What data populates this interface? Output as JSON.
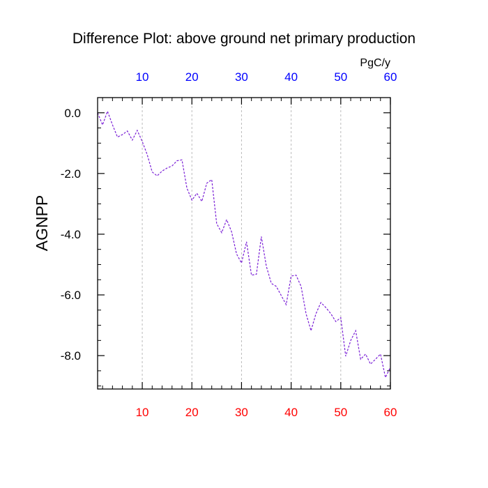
{
  "chart_data": {
    "type": "line",
    "title": "Difference Plot: above ground net primary production",
    "ylabel": "AGNPP",
    "units": "PgC/y",
    "xlim": [
      1,
      60
    ],
    "ylim": [
      -9.1,
      0.5
    ],
    "x_ticks": [
      10,
      20,
      30,
      40,
      50,
      60
    ],
    "y_ticks": [
      0.0,
      -2.0,
      -4.0,
      -6.0,
      -8.0
    ],
    "y_tick_labels": [
      "0.0",
      "-2.0",
      "-4.0",
      "-6.0",
      "-8.0"
    ],
    "grid": "vertical dashed at x ticks",
    "colors": {
      "line": "#7a1fd6",
      "bottom_tick_labels": "#ff0000",
      "top_tick_labels": "#0000ff",
      "axes": "#000000",
      "grid": "#bbbbbb"
    },
    "series": [
      {
        "x": [
          1,
          2,
          3,
          4,
          5,
          6,
          7,
          8,
          9,
          10,
          11,
          12,
          13,
          14,
          15,
          16,
          17,
          18,
          19,
          20,
          21,
          22,
          23,
          24,
          25,
          26,
          27,
          28,
          29,
          30,
          31,
          32,
          33,
          34,
          35,
          36,
          37,
          38,
          39,
          40,
          41,
          42,
          43,
          44,
          45,
          46,
          47,
          48,
          49,
          50,
          51,
          52,
          53,
          54,
          55,
          56,
          57,
          58,
          59,
          60
        ],
        "values": [
          0.0,
          -0.4,
          0.05,
          -0.4,
          -0.8,
          -0.72,
          -0.6,
          -0.9,
          -0.58,
          -0.95,
          -1.38,
          -1.95,
          -2.08,
          -1.92,
          -1.82,
          -1.75,
          -1.58,
          -1.55,
          -2.48,
          -2.88,
          -2.65,
          -2.92,
          -2.32,
          -2.2,
          -3.65,
          -3.95,
          -3.52,
          -3.92,
          -4.65,
          -4.95,
          -4.25,
          -5.35,
          -5.32,
          -4.08,
          -5.05,
          -5.62,
          -5.72,
          -6.02,
          -6.32,
          -5.38,
          -5.35,
          -5.72,
          -6.62,
          -7.18,
          -6.62,
          -6.25,
          -6.42,
          -6.62,
          -6.88,
          -6.75,
          -8.02,
          -7.5,
          -7.18,
          -8.12,
          -7.95,
          -8.28,
          -8.12,
          -7.95,
          -8.72,
          -8.38
        ]
      }
    ]
  }
}
